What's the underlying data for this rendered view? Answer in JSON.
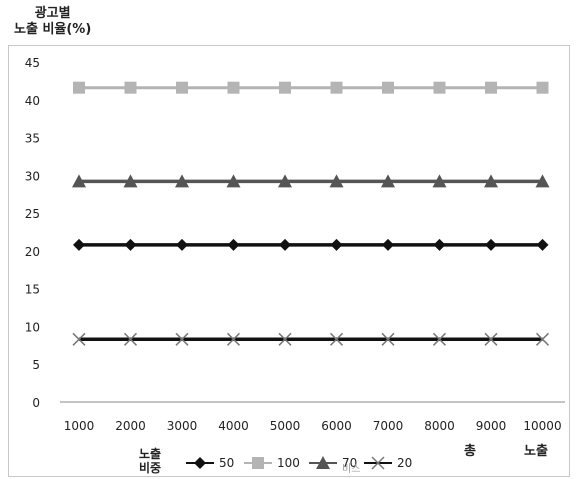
{
  "chart_data": {
    "type": "line",
    "ylabel_line1": "광고별",
    "ylabel_line2": "노출 비율(%)",
    "xlabel_word1": "총",
    "xlabel_word2": "노출",
    "legend_title_line1": "노출",
    "legend_title_line2": "비중",
    "legend_trailing_fragment": "비스",
    "x": [
      1000,
      2000,
      3000,
      4000,
      5000,
      6000,
      7000,
      8000,
      9000,
      10000
    ],
    "x_tick_labels": [
      "1000",
      "2000",
      "3000",
      "4000",
      "5000",
      "6000",
      "7000",
      "8000",
      "9000",
      "10000"
    ],
    "ylim": [
      0,
      45
    ],
    "y_ticks": [
      0,
      5,
      10,
      15,
      20,
      25,
      30,
      35,
      40,
      45
    ],
    "grid": false,
    "legend_position": "bottom",
    "series": [
      {
        "name": "50",
        "marker": "diamond",
        "color": "#111111",
        "values": [
          20.8,
          20.8,
          20.8,
          20.8,
          20.8,
          20.8,
          20.8,
          20.8,
          20.8,
          20.8
        ]
      },
      {
        "name": "100",
        "marker": "square",
        "color": "#b4b4b4",
        "values": [
          41.6,
          41.6,
          41.6,
          41.6,
          41.6,
          41.6,
          41.6,
          41.6,
          41.6,
          41.6
        ]
      },
      {
        "name": "70",
        "marker": "triangle",
        "color": "#555555",
        "values": [
          29.2,
          29.2,
          29.2,
          29.2,
          29.2,
          29.2,
          29.2,
          29.2,
          29.2,
          29.2
        ]
      },
      {
        "name": "20",
        "marker": "x",
        "color": "#111111",
        "values": [
          8.3,
          8.3,
          8.3,
          8.3,
          8.3,
          8.3,
          8.3,
          8.3,
          8.3,
          8.3
        ]
      }
    ]
  }
}
